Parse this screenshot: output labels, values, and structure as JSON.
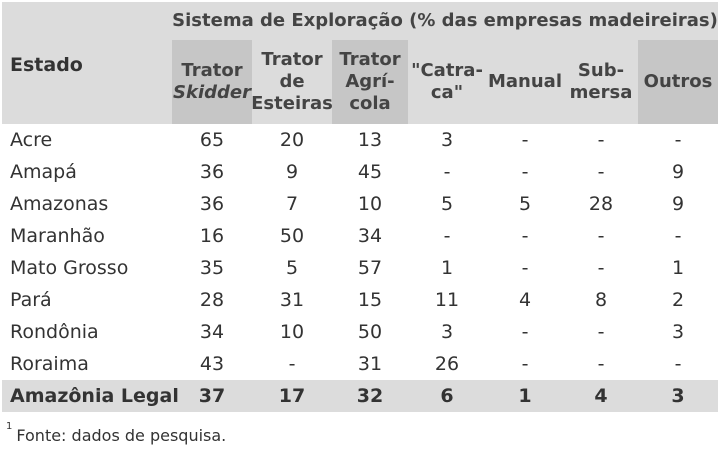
{
  "table": {
    "state_header": "Estado",
    "group_header": "Sistema de Exploração (% das empresas madeireiras)",
    "columns": [
      {
        "lines": [
          "Trator",
          "Skidder"
        ],
        "italic_line": 1
      },
      {
        "lines": [
          "Trator",
          "de",
          "Esteiras"
        ]
      },
      {
        "lines": [
          "Trator",
          "Agrí-",
          "cola"
        ]
      },
      {
        "lines": [
          "\"Catra-",
          "ca\""
        ]
      },
      {
        "lines": [
          "Manual"
        ]
      },
      {
        "lines": [
          "Sub-",
          "mersa"
        ]
      },
      {
        "lines": [
          "Outros"
        ]
      }
    ],
    "rows": [
      {
        "state": "Acre",
        "values": [
          "65",
          "20",
          "13",
          "3",
          "-",
          "-",
          "-"
        ]
      },
      {
        "state": "Amapá",
        "values": [
          "36",
          "9",
          "45",
          "-",
          "-",
          "-",
          "9"
        ]
      },
      {
        "state": "Amazonas",
        "values": [
          "36",
          "7",
          "10",
          "5",
          "5",
          "28",
          "9"
        ]
      },
      {
        "state": "Maranhão",
        "values": [
          "16",
          "50",
          "34",
          "-",
          "-",
          "-",
          "-"
        ]
      },
      {
        "state": "Mato Grosso",
        "values": [
          "35",
          "5",
          "57",
          "1",
          "-",
          "-",
          "1"
        ]
      },
      {
        "state": "Pará",
        "values": [
          "28",
          "31",
          "15",
          "11",
          "4",
          "8",
          "2"
        ]
      },
      {
        "state": "Rondônia",
        "values": [
          "34",
          "10",
          "50",
          "3",
          "-",
          "-",
          "3"
        ]
      },
      {
        "state": "Roraima",
        "values": [
          "43",
          "-",
          "31",
          "26",
          "-",
          "-",
          "-"
        ]
      }
    ],
    "total": {
      "state": "Amazônia Legal",
      "values": [
        "37",
        "17",
        "32",
        "6",
        "1",
        "4",
        "3"
      ]
    }
  },
  "footnote": {
    "marker": "1",
    "text": "Fonte: dados de pesquisa."
  }
}
